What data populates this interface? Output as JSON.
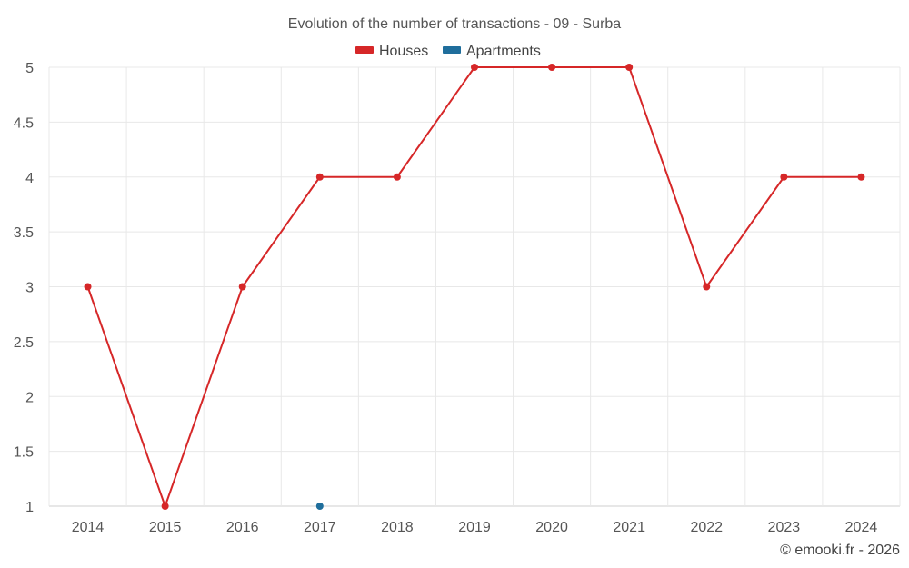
{
  "chart_data": {
    "type": "line",
    "title": "Evolution of the number of transactions - 09 - Surba",
    "categories": [
      "2014",
      "2015",
      "2016",
      "2017",
      "2018",
      "2019",
      "2020",
      "2021",
      "2022",
      "2023",
      "2024"
    ],
    "series": [
      {
        "name": "Houses",
        "color": "#d62728",
        "values": [
          3,
          1,
          3,
          4,
          4,
          5,
          5,
          5,
          3,
          4,
          4
        ]
      },
      {
        "name": "Apartments",
        "color": "#1f6e9c",
        "values": [
          null,
          null,
          null,
          1,
          null,
          null,
          null,
          null,
          null,
          null,
          null
        ]
      }
    ],
    "y_ticks": [
      "1",
      "1.5",
      "2",
      "2.5",
      "3",
      "3.5",
      "4",
      "4.5",
      "5"
    ],
    "ylim": [
      1,
      5
    ],
    "xlabel": "",
    "ylabel": "",
    "legend_position": "top-center",
    "grid": true
  },
  "credit": "© emooki.fr - 2026"
}
